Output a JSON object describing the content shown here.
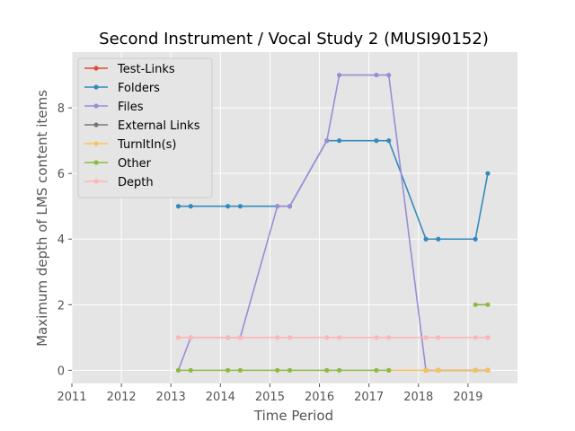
{
  "chart_data": {
    "type": "line",
    "title": "Second Instrument / Vocal Study 2 (MUSI90152)",
    "xlabel": "Time Period",
    "ylabel": "Maximum depth of LMS content items",
    "xlim": [
      2011,
      2020
    ],
    "ylim": [
      -0.4,
      9.7
    ],
    "xticks": [
      2011,
      2012,
      2013,
      2014,
      2015,
      2016,
      2017,
      2018,
      2019
    ],
    "yticks": [
      0,
      2,
      4,
      6,
      8
    ],
    "grid": true,
    "legend_position": "top-left",
    "x": [
      2013.15,
      2013.4,
      2014.15,
      2014.4,
      2015.15,
      2015.4,
      2016.15,
      2016.4,
      2017.15,
      2017.4,
      2018.15,
      2018.4,
      2019.15,
      2019.4
    ],
    "series": [
      {
        "name": "Test-Links",
        "color": "#E24A33",
        "values": [
          null,
          null,
          null,
          null,
          null,
          null,
          null,
          null,
          null,
          null,
          0,
          0,
          0,
          0
        ]
      },
      {
        "name": "Folders",
        "color": "#348ABD",
        "values": [
          5,
          5,
          5,
          5,
          5,
          5,
          7,
          7,
          7,
          7,
          4,
          4,
          4,
          6
        ]
      },
      {
        "name": "Files",
        "color": "#988ED5",
        "values": [
          0,
          1,
          1,
          1,
          5,
          5,
          7,
          9,
          9,
          9,
          0,
          0,
          0,
          0
        ]
      },
      {
        "name": "External Links",
        "color": "#777777",
        "values": [
          null,
          null,
          null,
          null,
          null,
          null,
          null,
          null,
          null,
          null,
          0,
          0,
          0,
          0
        ]
      },
      {
        "name": "TurnItIn(s)",
        "color": "#FBC15E",
        "values": [
          null,
          null,
          null,
          null,
          null,
          null,
          null,
          null,
          null,
          0,
          0,
          0,
          0,
          0
        ]
      },
      {
        "name": "Other",
        "color": "#8EBA42",
        "values": [
          0,
          0,
          0,
          0,
          0,
          0,
          0,
          0,
          0,
          0,
          null,
          null,
          2,
          2
        ]
      },
      {
        "name": "Depth",
        "color": "#FFB5B8",
        "values": [
          1,
          1,
          1,
          1,
          1,
          1,
          1,
          1,
          1,
          1,
          1,
          1,
          1,
          1
        ]
      }
    ]
  },
  "colors": {
    "plot_background": "#E5E5E5",
    "grid": "#FFFFFF",
    "legend_background": "#E5E5E5",
    "legend_border": "#CCCCCC"
  }
}
